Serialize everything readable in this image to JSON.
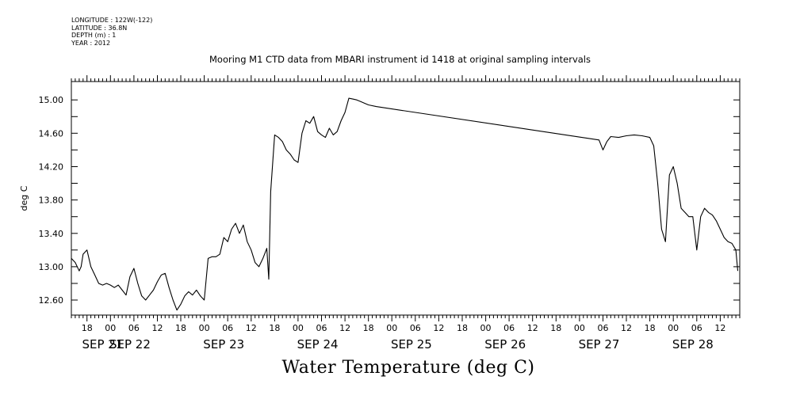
{
  "metadata": {
    "longitude": "LONGITUDE : 122W(-122)",
    "latitude": "LATITUDE : 36.8N",
    "depth": "DEPTH (m) : 1",
    "year": "YEAR : 2012"
  },
  "title": "Mooring M1 CTD data from MBARI instrument id 1418 at original sampling intervals",
  "footer_title": "Water Temperature (deg C)",
  "chart_data": {
    "type": "line",
    "title": "Mooring M1 CTD data from MBARI instrument id 1418 at original sampling intervals",
    "xlabel": "",
    "ylabel": "deg C",
    "ylim": [
      12.42,
      15.22
    ],
    "xlim": [
      "2012-09-21 14:00",
      "2012-09-28 17:00"
    ],
    "y_ticks": [
      "12.60",
      "13.00",
      "13.40",
      "13.80",
      "14.20",
      "14.60",
      "15.00"
    ],
    "x_hour_ticks": [
      "18",
      "00",
      "06",
      "12",
      "18",
      "00",
      "06",
      "12",
      "18",
      "00",
      "06",
      "12",
      "18",
      "00",
      "06",
      "12",
      "18",
      "00",
      "06",
      "12",
      "18",
      "00",
      "06",
      "12",
      "18",
      "00",
      "06",
      "12",
      "18",
      "00",
      "06",
      "12"
    ],
    "x_day_labels": [
      "SEP 21",
      "SEP 22",
      "SEP 23",
      "SEP 24",
      "SEP 25",
      "SEP 26",
      "SEP 27",
      "SEP 28"
    ],
    "grid": false,
    "legend": "none",
    "series": [
      {
        "x": [
          "2012-09-21 14:00",
          "2012-09-21 15:00",
          "2012-09-21 16:00",
          "2012-09-21 16:30",
          "2012-09-21 17:00",
          "2012-09-21 18:00",
          "2012-09-21 19:00",
          "2012-09-21 20:00",
          "2012-09-21 21:00",
          "2012-09-21 22:00",
          "2012-09-21 23:00",
          "2012-09-22 00:00",
          "2012-09-22 01:00",
          "2012-09-22 02:00",
          "2012-09-22 03:00",
          "2012-09-22 04:00",
          "2012-09-22 05:00",
          "2012-09-22 06:00",
          "2012-09-22 07:00",
          "2012-09-22 08:00",
          "2012-09-22 09:00",
          "2012-09-22 10:00",
          "2012-09-22 11:00",
          "2012-09-22 12:00",
          "2012-09-22 13:00",
          "2012-09-22 14:00",
          "2012-09-22 15:00",
          "2012-09-22 16:00",
          "2012-09-22 17:00",
          "2012-09-22 18:00",
          "2012-09-22 19:00",
          "2012-09-22 20:00",
          "2012-09-22 21:00",
          "2012-09-22 22:00",
          "2012-09-22 23:00",
          "2012-09-23 00:00",
          "2012-09-23 01:00",
          "2012-09-23 02:00",
          "2012-09-23 03:00",
          "2012-09-23 04:00",
          "2012-09-23 05:00",
          "2012-09-23 06:00",
          "2012-09-23 07:00",
          "2012-09-23 08:00",
          "2012-09-23 09:00",
          "2012-09-23 10:00",
          "2012-09-23 11:00",
          "2012-09-23 12:00",
          "2012-09-23 13:00",
          "2012-09-23 14:00",
          "2012-09-23 15:00",
          "2012-09-23 16:00",
          "2012-09-23 16:30",
          "2012-09-23 17:00",
          "2012-09-23 18:00",
          "2012-09-23 19:00",
          "2012-09-23 20:00",
          "2012-09-23 21:00",
          "2012-09-23 22:00",
          "2012-09-23 23:00",
          "2012-09-24 00:00",
          "2012-09-24 01:00",
          "2012-09-24 02:00",
          "2012-09-24 03:00",
          "2012-09-24 04:00",
          "2012-09-24 05:00",
          "2012-09-24 06:00",
          "2012-09-24 07:00",
          "2012-09-24 08:00",
          "2012-09-24 09:00",
          "2012-09-24 10:00",
          "2012-09-24 11:00",
          "2012-09-24 12:00",
          "2012-09-24 13:00",
          "2012-09-24 14:00",
          "2012-09-24 15:00",
          "2012-09-24 16:00",
          "2012-09-24 17:00",
          "2012-09-24 18:00",
          "2012-09-24 20:00",
          "2012-09-27 05:00",
          "2012-09-27 06:00",
          "2012-09-27 07:00",
          "2012-09-27 08:00",
          "2012-09-27 10:00",
          "2012-09-27 12:00",
          "2012-09-27 14:00",
          "2012-09-27 16:00",
          "2012-09-27 18:00",
          "2012-09-27 19:00",
          "2012-09-27 20:00",
          "2012-09-27 21:00",
          "2012-09-27 22:00",
          "2012-09-27 23:00",
          "2012-09-28 00:00",
          "2012-09-28 01:00",
          "2012-09-28 02:00",
          "2012-09-28 03:00",
          "2012-09-28 04:00",
          "2012-09-28 05:00",
          "2012-09-28 06:00",
          "2012-09-28 07:00",
          "2012-09-28 08:00",
          "2012-09-28 09:00",
          "2012-09-28 10:00",
          "2012-09-28 11:00",
          "2012-09-28 12:00",
          "2012-09-28 13:00",
          "2012-09-28 14:00",
          "2012-09-28 15:00",
          "2012-09-28 16:00",
          "2012-09-28 16:30"
        ],
        "values": [
          13.1,
          13.05,
          12.95,
          13.0,
          13.15,
          13.2,
          13.0,
          12.9,
          12.8,
          12.78,
          12.8,
          12.78,
          12.75,
          12.78,
          12.72,
          12.66,
          12.88,
          12.98,
          12.8,
          12.65,
          12.6,
          12.66,
          12.72,
          12.82,
          12.9,
          12.92,
          12.75,
          12.6,
          12.48,
          12.55,
          12.65,
          12.7,
          12.66,
          12.72,
          12.65,
          12.6,
          13.1,
          13.12,
          13.12,
          13.15,
          13.35,
          13.3,
          13.45,
          13.52,
          13.4,
          13.5,
          13.3,
          13.2,
          13.05,
          13.0,
          13.1,
          13.22,
          12.85,
          13.9,
          14.58,
          14.55,
          14.5,
          14.4,
          14.35,
          14.28,
          14.25,
          14.6,
          14.75,
          14.72,
          14.8,
          14.62,
          14.58,
          14.55,
          14.66,
          14.58,
          14.62,
          14.75,
          14.85,
          15.02,
          15.01,
          15.0,
          14.98,
          14.96,
          14.94,
          14.92,
          14.52,
          14.4,
          14.5,
          14.56,
          14.55,
          14.57,
          14.58,
          14.57,
          14.55,
          14.45,
          14.0,
          13.45,
          13.3,
          14.1,
          14.2,
          14.0,
          13.7,
          13.65,
          13.6,
          13.6,
          13.2,
          13.6,
          13.7,
          13.65,
          13.62,
          13.55,
          13.45,
          13.35,
          13.3,
          13.28,
          13.2,
          12.95
        ]
      }
    ]
  }
}
